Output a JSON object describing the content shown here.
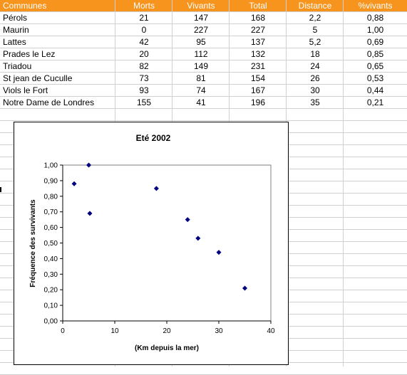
{
  "sheet": {
    "headers": [
      "Communes",
      "Morts",
      "Vivants",
      "Total",
      "Distance",
      "%vivants"
    ],
    "rows": [
      [
        "Pérols",
        "21",
        "147",
        "168",
        "2,2",
        "0,88"
      ],
      [
        "Maurin",
        "0",
        "227",
        "227",
        "5",
        "1,00"
      ],
      [
        "Lattes",
        "42",
        "95",
        "137",
        "5,2",
        "0,69"
      ],
      [
        "Prades le Lez",
        "20",
        "112",
        "132",
        "18",
        "0,85"
      ],
      [
        "Triadou",
        "82",
        "149",
        "231",
        "24",
        "0,65"
      ],
      [
        "St jean de Cuculle",
        "73",
        "81",
        "154",
        "26",
        "0,53"
      ],
      [
        "Viols le Fort",
        "93",
        "74",
        "167",
        "30",
        "0,44"
      ],
      [
        "Notre Dame de Londres",
        "155",
        "41",
        "196",
        "35",
        "0,21"
      ]
    ],
    "header_color": "#f7941d"
  },
  "chart_data": {
    "type": "scatter",
    "title": "Eté 2002",
    "xlabel": "(Km depuis la mer)",
    "ylabel": "Fréquence des survivants",
    "xlim": [
      0,
      40
    ],
    "ylim": [
      0,
      1
    ],
    "x_ticks": [
      "0",
      "10",
      "20",
      "30",
      "40"
    ],
    "y_ticks": [
      "0,00",
      "0,10",
      "0,20",
      "0,30",
      "0,40",
      "0,50",
      "0,60",
      "0,70",
      "0,80",
      "0,90",
      "1,00"
    ],
    "grid": false,
    "legend": "none",
    "marker_color": "#000080",
    "x": [
      2.2,
      5,
      5.2,
      18,
      24,
      26,
      30,
      35
    ],
    "y": [
      0.88,
      1.0,
      0.69,
      0.85,
      0.65,
      0.53,
      0.44,
      0.21
    ]
  }
}
